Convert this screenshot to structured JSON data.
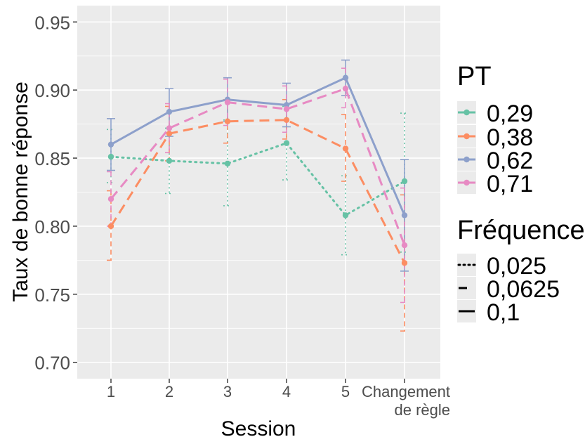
{
  "chart_data": {
    "type": "line",
    "xlabel": "Session",
    "ylabel": "Taux de bonne réponse",
    "categories": [
      "1",
      "2",
      "3",
      "4",
      "5",
      "Changement|de règle"
    ],
    "ylim": [
      0.688,
      0.962
    ],
    "yticks": [
      0.7,
      0.75,
      0.8,
      0.85,
      0.9,
      0.95
    ],
    "ytick_labels": [
      "0.70",
      "0.75",
      "0.80",
      "0.85",
      "0.90",
      "0.95"
    ],
    "grid": true,
    "legend_position": "right",
    "legend": {
      "pt_title": "PT",
      "freq_title": "Fréquence",
      "freq_entries": [
        {
          "label": "0,025",
          "dash": "dotted"
        },
        {
          "label": "0,0625",
          "dash": "dashed"
        },
        {
          "label": "0,1",
          "dash": "solid"
        }
      ]
    },
    "series": [
      {
        "name": "0,29",
        "color": "#66c2a5",
        "linetype": "dotted",
        "values": [
          0.851,
          0.848,
          0.846,
          0.861,
          0.808,
          0.833
        ],
        "err_low": [
          0.832,
          0.824,
          0.815,
          0.834,
          0.779,
          0.781
        ],
        "err_high": [
          0.871,
          0.872,
          0.878,
          0.888,
          0.837,
          0.883
        ]
      },
      {
        "name": "0,38",
        "color": "#fc8d62",
        "linetype": "dashed",
        "values": [
          0.8,
          0.868,
          0.877,
          0.878,
          0.857,
          0.773
        ],
        "err_low": [
          0.775,
          0.848,
          0.861,
          0.864,
          0.833,
          0.723
        ],
        "err_high": [
          0.826,
          0.888,
          0.893,
          0.893,
          0.882,
          0.823
        ]
      },
      {
        "name": "0,62",
        "color": "#8da0cb",
        "linetype": "solid",
        "values": [
          0.86,
          0.884,
          0.893,
          0.889,
          0.909,
          0.808
        ],
        "err_low": [
          0.841,
          0.866,
          0.877,
          0.873,
          0.896,
          0.767
        ],
        "err_high": [
          0.879,
          0.901,
          0.909,
          0.905,
          0.922,
          0.849
        ]
      },
      {
        "name": "0,71",
        "color": "#e78ac3",
        "linetype": "dashed",
        "values": [
          0.82,
          0.872,
          0.891,
          0.886,
          0.901,
          0.786
        ],
        "err_low": [
          0.8,
          0.854,
          0.874,
          0.869,
          0.887,
          0.744
        ],
        "err_high": [
          0.84,
          0.89,
          0.908,
          0.903,
          0.916,
          0.828
        ]
      }
    ]
  }
}
